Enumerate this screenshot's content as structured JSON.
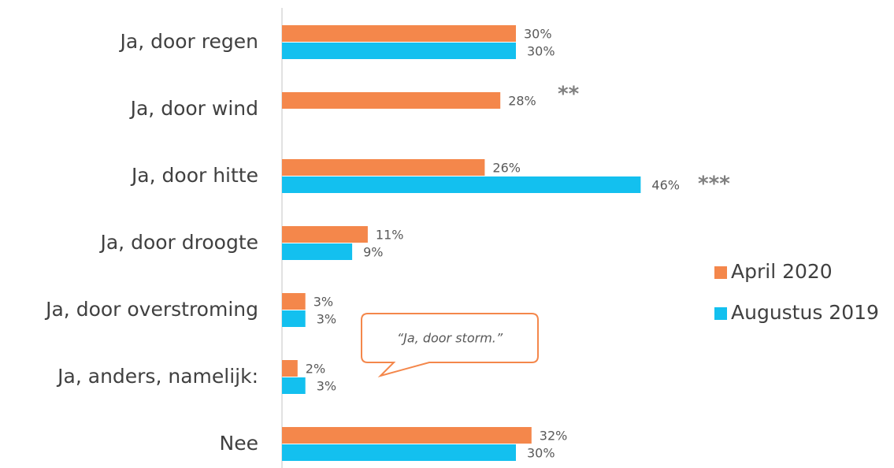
{
  "chart_data": {
    "type": "bar",
    "orientation": "horizontal",
    "categories": [
      "Ja, door regen",
      "Ja, door wind",
      "Ja, door hitte",
      "Ja, door droogte",
      "Ja, door overstroming",
      "Ja, anders, namelijk:",
      "Nee"
    ],
    "series": [
      {
        "name": "April 2020",
        "color": "#f4874b",
        "values": [
          30,
          28,
          26,
          11,
          3,
          2,
          32
        ],
        "value_labels": [
          "30%",
          "28%",
          "26%",
          "11%",
          "3%",
          "2%",
          "32%"
        ]
      },
      {
        "name": "Augustus 2019",
        "color": "#13c0ef",
        "values": [
          30,
          null,
          46,
          9,
          3,
          3,
          30
        ],
        "value_labels": [
          "30%",
          null,
          "46%",
          "9%",
          "3%",
          "3%",
          "30%"
        ]
      }
    ],
    "annotations": [
      "**",
      "***",
      "“Ja, door storm.”"
    ]
  }
}
